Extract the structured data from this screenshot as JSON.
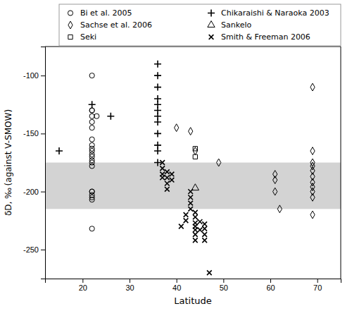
{
  "chart_data": {
    "type": "scatter",
    "xlabel": "Latitude",
    "ylabel": "δD, ‰ (against V-SMOW)",
    "xlim": [
      12,
      75
    ],
    "ylim": [
      -275,
      -75
    ],
    "xticks": [
      20,
      30,
      40,
      50,
      60,
      70
    ],
    "yticks": [
      -100,
      -150,
      -200,
      -250
    ],
    "grid": false,
    "legend": "upper-right",
    "shaded_band": {
      "from": -215,
      "to": -175,
      "color": "#d3d3d3"
    },
    "series": [
      {
        "name": "Bi et al. 2005",
        "marker": "circle-open",
        "color": "black",
        "x": [
          22,
          22,
          22,
          22,
          22,
          22,
          22,
          22,
          22,
          22,
          22,
          22,
          22,
          22,
          22,
          22,
          22,
          22,
          22,
          22,
          22,
          23
        ],
        "values": [
          -100,
          -130,
          -135,
          -140,
          -145,
          -155,
          -160,
          -163,
          -165,
          -168,
          -170,
          -173,
          -175,
          -178,
          -200,
          -203,
          -205,
          -207,
          -200,
          -232,
          -130,
          -135
        ]
      },
      {
        "name": "Chikaraishi & Naraoka 2003",
        "marker": "plus",
        "color": "black",
        "x": [
          15,
          22,
          26,
          36,
          36,
          36,
          36,
          36,
          36,
          36,
          36,
          36,
          36,
          36,
          36
        ],
        "values": [
          -165,
          -125,
          -135,
          -90,
          -100,
          -110,
          -120,
          -125,
          -130,
          -135,
          -140,
          -150,
          -160,
          -165,
          -175
        ]
      },
      {
        "name": "Sachse et al. 2006",
        "marker": "diamond-open",
        "color": "black",
        "x": [
          40,
          43,
          44,
          49,
          61,
          61,
          61,
          62,
          69,
          69,
          69,
          69,
          69,
          69,
          69,
          69,
          69,
          69,
          69
        ],
        "values": [
          -145,
          -148,
          -165,
          -175,
          -190,
          -185,
          -200,
          -215,
          -110,
          -165,
          -175,
          -178,
          -182,
          -187,
          -192,
          -196,
          -200,
          -205,
          -220
        ]
      },
      {
        "name": "Sankelo",
        "marker": "triangle-open",
        "color": "black",
        "x": [
          44
        ],
        "values": [
          -197
        ]
      },
      {
        "name": "Seki",
        "marker": "square-open",
        "color": "black",
        "x": [
          44,
          44
        ],
        "values": [
          -163,
          -170
        ]
      },
      {
        "name": "Smith & Freeman 2006",
        "marker": "x",
        "color": "black",
        "x": [
          37,
          37,
          37,
          37,
          38,
          38,
          38,
          38,
          39,
          39,
          41,
          42,
          42,
          43,
          43,
          43,
          43,
          44,
          44,
          44,
          44,
          44,
          44,
          44,
          45,
          45,
          46,
          46,
          46,
          46,
          47
        ],
        "values": [
          -175,
          -180,
          -185,
          -188,
          -183,
          -188,
          -193,
          -198,
          -185,
          -190,
          -230,
          -220,
          -225,
          -200,
          -205,
          -210,
          -215,
          -218,
          -222,
          -227,
          -230,
          -233,
          -237,
          -242,
          -226,
          -233,
          -228,
          -232,
          -237,
          -242,
          -270
        ]
      }
    ]
  }
}
